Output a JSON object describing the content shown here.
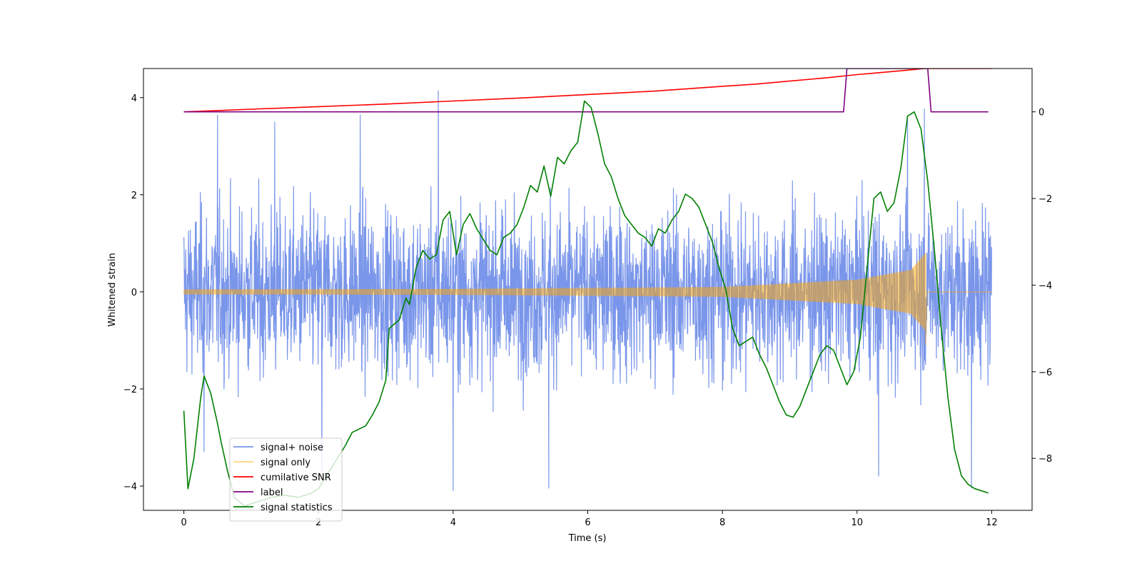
{
  "chart_data": {
    "type": "line",
    "title": "",
    "xlabel": "Time (s)",
    "ylabel": "Whitened strain",
    "y2label": "",
    "xlim": [
      -0.6,
      12.6
    ],
    "ylim": [
      -4.5,
      4.6
    ],
    "y2lim": [
      -9.2,
      1.0
    ],
    "x_ticks": [
      0,
      2,
      4,
      6,
      8,
      10,
      12
    ],
    "y_ticks": [
      -4,
      -2,
      0,
      2,
      4
    ],
    "y2_ticks": [
      -8,
      -6,
      -4,
      -2,
      0
    ],
    "grid": false,
    "legend_position": "lower-left",
    "series": [
      {
        "name": "signal+ noise",
        "axis": "left",
        "color": "#4169e1",
        "opacity": 0.7,
        "style": "band",
        "x_range": [
          0,
          12
        ],
        "noise_std": 1.0,
        "envelope": {
          "x": [
            0,
            2,
            4,
            6,
            8,
            10,
            12
          ],
          "upper": [
            2.6,
            2.7,
            2.7,
            2.8,
            2.7,
            2.8,
            2.7
          ],
          "lower": [
            -2.4,
            -2.5,
            -2.5,
            -2.6,
            -2.5,
            -2.5,
            -2.4
          ]
        },
        "spikes": [
          {
            "x": 0.5,
            "y": 3.65
          },
          {
            "x": 1.35,
            "y": 3.5
          },
          {
            "x": 2.62,
            "y": 3.65
          },
          {
            "x": 3.78,
            "y": 4.15
          },
          {
            "x": 11.0,
            "y": 3.77
          },
          {
            "x": 10.75,
            "y": 3.6
          },
          {
            "x": 4.0,
            "y": -4.1
          },
          {
            "x": 5.42,
            "y": -4.05
          },
          {
            "x": 10.32,
            "y": -3.8
          },
          {
            "x": 11.7,
            "y": -4.05
          },
          {
            "x": 0.3,
            "y": -3.3
          },
          {
            "x": 2.05,
            "y": -3.7
          }
        ]
      },
      {
        "name": "signal only",
        "axis": "left",
        "color": "#ffa500",
        "opacity": 0.5,
        "style": "chirp",
        "x_range": [
          0,
          12
        ],
        "merger_time": 11.02,
        "amplitude_at": {
          "x": [
            0,
            4,
            8,
            10,
            10.8,
            11.02
          ],
          "y": [
            0.05,
            0.06,
            0.1,
            0.25,
            0.45,
            0.8
          ]
        },
        "min_at_merger": -1.1
      },
      {
        "name": "cumilative SNR",
        "axis": "right",
        "color": "#ff0000",
        "x": [
          0,
          1,
          2,
          3,
          4,
          5,
          6,
          7,
          8,
          8.5,
          9,
          9.5,
          10,
          10.3,
          10.6,
          10.8,
          11.0,
          11.02,
          12.0
        ],
        "y": [
          0.0,
          0.06,
          0.12,
          0.18,
          0.25,
          0.32,
          0.4,
          0.48,
          0.59,
          0.64,
          0.71,
          0.78,
          0.86,
          0.9,
          0.94,
          0.97,
          1.0,
          1.0,
          1.0
        ]
      },
      {
        "name": "label",
        "axis": "right",
        "color": "#800080",
        "x": [
          0,
          9.8,
          9.85,
          11.05,
          11.1,
          11.95
        ],
        "y": [
          0,
          0,
          1,
          1,
          0,
          0
        ]
      },
      {
        "name": "signal statistics",
        "axis": "right",
        "color": "#008000",
        "x": [
          0.0,
          0.06,
          0.15,
          0.25,
          0.3,
          0.4,
          0.5,
          0.55,
          0.65,
          0.75,
          0.9,
          1.1,
          1.3,
          1.5,
          1.7,
          1.9,
          2.0,
          2.2,
          2.4,
          2.5,
          2.7,
          2.8,
          2.9,
          3.0,
          3.05,
          3.2,
          3.3,
          3.35,
          3.45,
          3.55,
          3.65,
          3.75,
          3.85,
          3.95,
          4.05,
          4.15,
          4.25,
          4.35,
          4.55,
          4.65,
          4.75,
          4.85,
          4.95,
          5.05,
          5.15,
          5.25,
          5.35,
          5.45,
          5.55,
          5.65,
          5.75,
          5.85,
          5.95,
          6.05,
          6.15,
          6.25,
          6.35,
          6.45,
          6.55,
          6.65,
          6.75,
          6.85,
          6.95,
          7.05,
          7.15,
          7.25,
          7.35,
          7.45,
          7.55,
          7.65,
          7.75,
          7.85,
          7.95,
          8.05,
          8.15,
          8.25,
          8.35,
          8.45,
          8.55,
          8.65,
          8.75,
          8.85,
          8.95,
          9.05,
          9.15,
          9.25,
          9.35,
          9.45,
          9.55,
          9.65,
          9.75,
          9.85,
          9.95,
          10.05,
          10.15,
          10.25,
          10.35,
          10.45,
          10.55,
          10.65,
          10.75,
          10.85,
          10.95,
          11.05,
          11.15,
          11.25,
          11.35,
          11.45,
          11.55,
          11.65,
          11.75,
          11.85,
          11.95
        ],
        "y": [
          -6.9,
          -8.7,
          -8.0,
          -6.6,
          -6.1,
          -6.5,
          -7.2,
          -7.6,
          -8.3,
          -8.9,
          -9.1,
          -9.0,
          -8.9,
          -8.85,
          -8.9,
          -8.8,
          -8.7,
          -8.2,
          -7.7,
          -7.4,
          -7.25,
          -7.0,
          -6.7,
          -6.2,
          -5.0,
          -4.8,
          -4.3,
          -4.45,
          -3.6,
          -3.2,
          -3.4,
          -3.3,
          -2.5,
          -2.3,
          -3.3,
          -2.6,
          -2.35,
          -2.7,
          -3.2,
          -3.3,
          -2.9,
          -2.8,
          -2.6,
          -2.2,
          -1.7,
          -1.85,
          -1.25,
          -1.95,
          -1.05,
          -1.2,
          -0.9,
          -0.7,
          0.25,
          0.1,
          -0.5,
          -1.2,
          -1.5,
          -2.0,
          -2.4,
          -2.6,
          -2.8,
          -2.9,
          -3.1,
          -2.7,
          -2.8,
          -2.5,
          -2.3,
          -1.9,
          -2.0,
          -2.2,
          -2.6,
          -3.0,
          -3.6,
          -4.1,
          -5.0,
          -5.4,
          -5.3,
          -5.2,
          -5.6,
          -5.9,
          -6.3,
          -6.7,
          -7.0,
          -7.05,
          -6.8,
          -6.4,
          -6.0,
          -5.6,
          -5.4,
          -5.5,
          -5.9,
          -6.3,
          -6.0,
          -5.2,
          -3.6,
          -2.0,
          -1.85,
          -2.3,
          -2.1,
          -1.3,
          -0.1,
          0.0,
          -0.4,
          -1.6,
          -3.2,
          -5.0,
          -6.6,
          -7.8,
          -8.4,
          -8.6,
          -8.7,
          -8.75,
          -8.8
        ]
      }
    ]
  }
}
